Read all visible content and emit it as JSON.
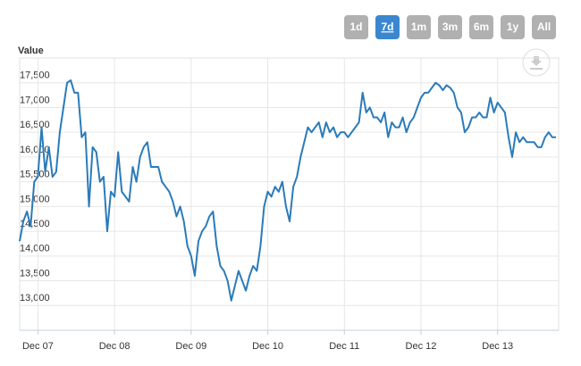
{
  "range_selector": {
    "buttons": [
      "1d",
      "7d",
      "1m",
      "3m",
      "6m",
      "1y",
      "All"
    ],
    "selected": 1
  },
  "chart_data": {
    "type": "line",
    "y_axis_label": "Value",
    "series": [
      {
        "color": "#2b7bb9",
        "values": [
          14300,
          14700,
          14900,
          14600,
          15500,
          15600,
          16600,
          15700,
          16200,
          15600,
          15700,
          16500,
          17000,
          17500,
          17550,
          17300,
          17300,
          16400,
          16500,
          15000,
          16200,
          16100,
          15500,
          15600,
          14500,
          15300,
          15200,
          16100,
          15300,
          15200,
          15100,
          15800,
          15500,
          16000,
          16200,
          16300,
          15800,
          15800,
          15800,
          15500,
          15400,
          15300,
          15100,
          14800,
          15000,
          14700,
          14200,
          14000,
          13600,
          14300,
          14500,
          14600,
          14800,
          14900,
          14200,
          13800,
          13700,
          13500,
          13100,
          13400,
          13700,
          13500,
          13300,
          13600,
          13800,
          13700,
          14200,
          15000,
          15300,
          15200,
          15400,
          15300,
          15500,
          15000,
          14700,
          15400,
          15600,
          16000,
          16300,
          16600,
          16500,
          16600,
          16700,
          16400,
          16700,
          16500,
          16600,
          16400,
          16500,
          16500,
          16400,
          16500,
          16600,
          16700,
          17300,
          16900,
          17000,
          16800,
          16800,
          16700,
          16900,
          16400,
          16700,
          16600,
          16600,
          16800,
          16500,
          16700,
          16800,
          17000,
          17200,
          17300,
          17300,
          17400,
          17500,
          17450,
          17350,
          17450,
          17400,
          17300,
          17000,
          16900,
          16500,
          16600,
          16800,
          16800,
          16900,
          16800,
          16800,
          17200,
          16900,
          17100,
          17000,
          16900,
          16400,
          16000,
          16500,
          16300,
          16400,
          16300,
          16300,
          16300,
          16200,
          16200,
          16400,
          16500,
          16400,
          16400
        ]
      }
    ],
    "xlim": [
      0,
      147
    ],
    "xticks": [
      {
        "value": 5,
        "label": "Dec 07"
      },
      {
        "value": 26,
        "label": "Dec 08"
      },
      {
        "value": 47,
        "label": "Dec 09"
      },
      {
        "value": 68,
        "label": "Dec 10"
      },
      {
        "value": 89,
        "label": "Dec 11"
      },
      {
        "value": 110,
        "label": "Dec 12"
      },
      {
        "value": 131,
        "label": "Dec 13"
      }
    ],
    "ylim": [
      12500,
      18000
    ],
    "yticks": [
      {
        "value": 13000,
        "label": "13,000"
      },
      {
        "value": 13500,
        "label": "13,500"
      },
      {
        "value": 14000,
        "label": "14,000"
      },
      {
        "value": 14500,
        "label": "14,500"
      },
      {
        "value": 15000,
        "label": "15,000"
      },
      {
        "value": 15500,
        "label": "15,500"
      },
      {
        "value": 16000,
        "label": "16,000"
      },
      {
        "value": 16500,
        "label": "16,500"
      },
      {
        "value": 17000,
        "label": "17,000"
      },
      {
        "value": 17500,
        "label": "17,500"
      }
    ],
    "grid": true
  }
}
